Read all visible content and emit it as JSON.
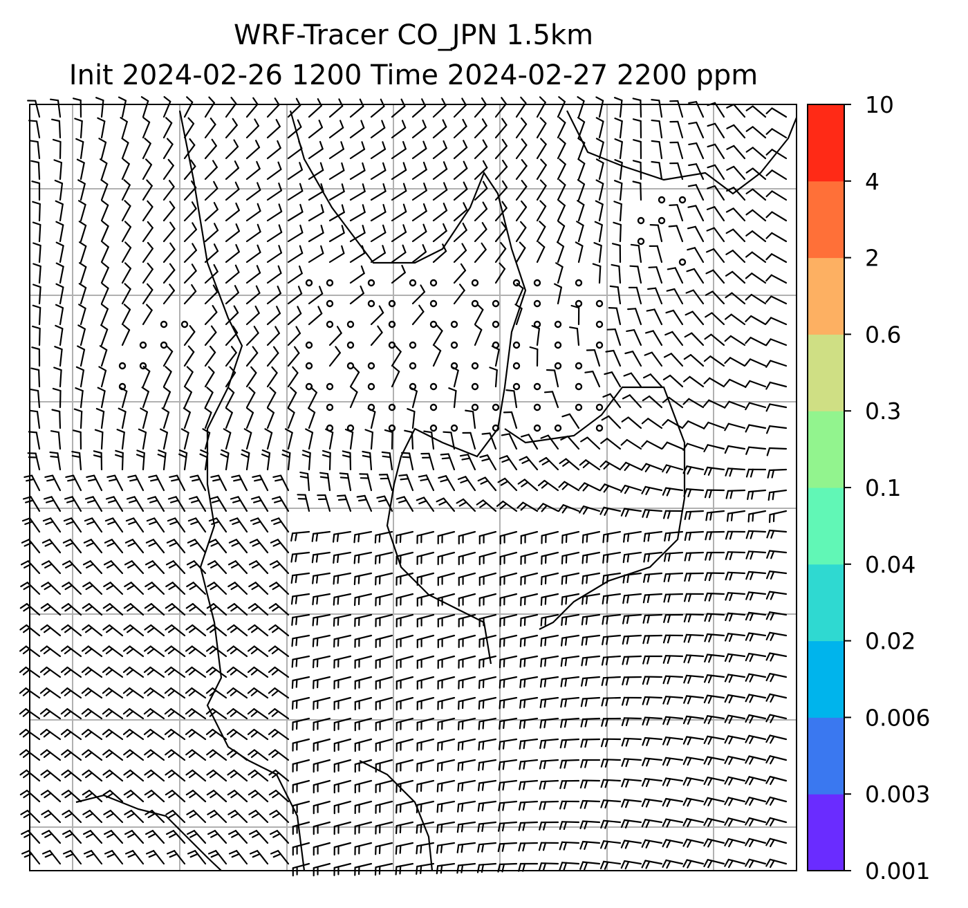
{
  "chart_data": {
    "type": "heatmap",
    "title": "WRF-Tracer CO_JPN 1.5km",
    "subtitle": "Init 2024-02-26 1200 Time 2024-02-27 2200 ppm",
    "grid": true,
    "colorbar": {
      "position": "right",
      "levels": [
        0.001,
        0.003,
        0.006,
        0.02,
        0.04,
        0.1,
        0.3,
        0.6,
        2,
        4,
        10
      ],
      "tick_labels": [
        "0.001",
        "0.003",
        "0.006",
        "0.02",
        "0.04",
        "0.1",
        "0.3",
        "0.6",
        "2",
        "4",
        "10"
      ],
      "colors": [
        "#6a2cff",
        "#3a78f0",
        "#00b4ec",
        "#2fd9d1",
        "#61f7b6",
        "#92f48e",
        "#cfdf84",
        "#fdb062",
        "#ff7038",
        "#ff2a16"
      ]
    },
    "overlay": "wind barbs",
    "filled_values": []
  }
}
